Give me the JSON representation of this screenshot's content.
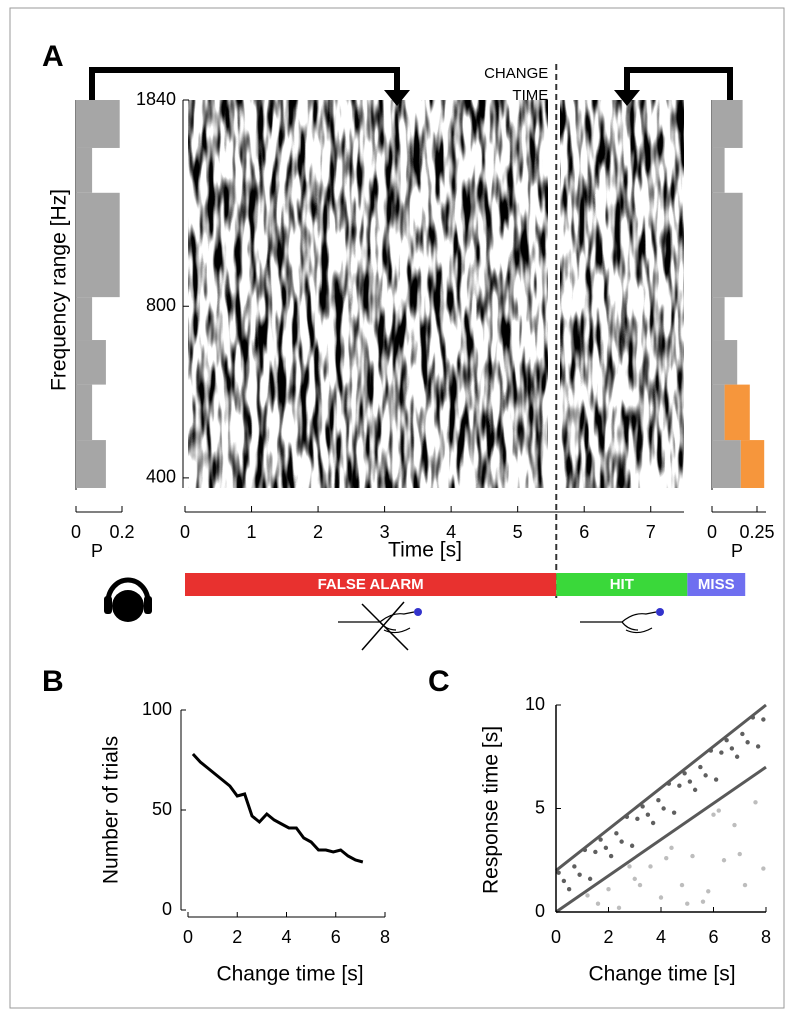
{
  "chart_data": [
    {
      "type": "spectrogram",
      "label": "A",
      "ylabel": "Frequency range [Hz]",
      "xlabel": "Time [s]",
      "xlim": [
        0,
        7.5
      ],
      "xticks": [
        0,
        1,
        2,
        3,
        4,
        5,
        6,
        7
      ],
      "ylim": [
        384,
        1840
      ],
      "yticks": [
        400,
        800,
        1840
      ],
      "ylog": true,
      "change_time": 5.58,
      "change_label": [
        "CHANGE",
        "TIME"
      ],
      "response_windows": [
        {
          "label": "FALSE ALARM",
          "color": "#e8312f",
          "start": 0,
          "end": 5.58
        },
        {
          "label": "HIT",
          "color": "#3ad83a",
          "start": 5.58,
          "end": 7.55
        },
        {
          "label": "MISS",
          "color": "#6f6ff0",
          "start": 7.55,
          "end": 8.42
        }
      ],
      "hist_left": {
        "xlabel": "P",
        "xlim": [
          0,
          0.2
        ],
        "xticks": [
          0,
          0.2
        ],
        "bins": [
          384,
          466,
          583,
          698,
          830,
          1265,
          1516,
          1840
        ],
        "values": [
          0.13,
          0.07,
          0.13,
          0.07,
          0.19,
          0.07,
          0.19
        ],
        "color": "#a6a6a6"
      },
      "hist_right": {
        "xlabel": "P",
        "xlim": [
          0,
          0.3
        ],
        "xticks": [
          0,
          0.25
        ],
        "bins": [
          384,
          466,
          583,
          698,
          830,
          1265,
          1516,
          1840
        ],
        "series": [
          {
            "color": "#a6a6a6",
            "values": [
              0.16,
              0.07,
              0.14,
              0.07,
              0.17,
              0.07,
              0.17
            ]
          },
          {
            "color": "#f6963c",
            "values": [
              0.13,
              0.14,
              0,
              0,
              0,
              0,
              0
            ]
          }
        ]
      }
    },
    {
      "type": "line",
      "label": "B",
      "xlabel": "Change time [s]",
      "ylabel": "Number of trials",
      "xlim": [
        0,
        8
      ],
      "xticks": [
        0,
        2,
        4,
        6,
        8
      ],
      "ylim": [
        0,
        100
      ],
      "yticks": [
        0,
        50,
        100
      ],
      "color": "#000000",
      "x": [
        0.2,
        0.5,
        0.8,
        1.1,
        1.4,
        1.7,
        2.0,
        2.3,
        2.6,
        2.9,
        3.2,
        3.5,
        3.8,
        4.1,
        4.4,
        4.7,
        5.0,
        5.3,
        5.6,
        5.9,
        6.2,
        6.5,
        6.8,
        7.1
      ],
      "values": [
        78,
        74,
        71,
        68,
        65,
        62,
        57,
        58,
        47,
        44,
        48,
        45,
        43,
        41,
        41,
        36,
        34,
        30,
        30,
        29,
        30,
        27,
        25,
        24
      ]
    },
    {
      "type": "scatter",
      "label": "C",
      "xlabel": "Change time [s]",
      "ylabel": "Response time [s]",
      "xlim": [
        0,
        8
      ],
      "xticks": [
        0,
        2,
        4,
        6,
        8
      ],
      "ylim": [
        0,
        10
      ],
      "yticks": [
        0,
        5,
        10
      ],
      "reference_lines": {
        "color": "#595959",
        "lines": [
          {
            "x": [
              0,
              8
            ],
            "y": [
              2,
              10
            ]
          },
          {
            "x": [
              0,
              8
            ],
            "y": [
              0,
              7
            ]
          }
        ]
      },
      "series": [
        {
          "color": "#5f5f5f",
          "x": [
            0.1,
            0.3,
            0.5,
            0.7,
            0.9,
            1.1,
            1.3,
            1.5,
            1.7,
            1.9,
            2.1,
            2.3,
            2.5,
            2.7,
            2.9,
            3.1,
            3.3,
            3.5,
            3.7,
            3.9,
            4.1,
            4.3,
            4.5,
            4.7,
            4.9,
            5.1,
            5.3,
            5.5,
            5.7,
            5.9,
            6.1,
            6.3,
            6.5,
            6.7,
            6.9,
            7.1,
            7.3,
            7.5,
            7.7,
            7.9
          ],
          "values": [
            1.9,
            1.5,
            1.1,
            2.2,
            1.8,
            3.0,
            1.6,
            2.9,
            3.5,
            3.1,
            2.7,
            3.8,
            3.4,
            4.6,
            3.2,
            4.5,
            5.1,
            4.7,
            4.3,
            5.4,
            5.0,
            6.2,
            4.8,
            6.1,
            6.7,
            6.3,
            5.9,
            7.0,
            6.6,
            7.8,
            6.4,
            7.7,
            8.3,
            7.9,
            7.5,
            8.6,
            8.2,
            9.4,
            8.0,
            9.3
          ]
        },
        {
          "color": "#bdbdbd",
          "x": [
            1.2,
            1.6,
            2.0,
            2.4,
            2.8,
            3.2,
            3.6,
            4.0,
            4.4,
            4.8,
            5.2,
            5.6,
            6.0,
            6.4,
            6.8,
            7.2,
            7.6,
            7.9,
            3.0,
            5.0,
            6.2,
            7.0,
            4.2,
            5.8
          ],
          "values": [
            0.8,
            0.4,
            1.1,
            0.2,
            2.2,
            1.3,
            2.2,
            0.7,
            3.1,
            1.3,
            2.7,
            0.5,
            4.7,
            2.5,
            4.2,
            1.3,
            5.3,
            2.1,
            1.6,
            0.4,
            4.9,
            2.8,
            2.6,
            1.0
          ]
        }
      ]
    }
  ]
}
